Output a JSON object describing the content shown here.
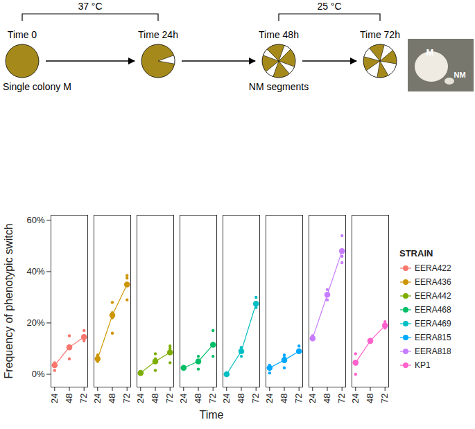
{
  "chart_data": {
    "type": "line",
    "x_label": "Time",
    "y_label": "Frequency of phenotypic switch",
    "legend_title": "STRAIN",
    "legend": "right",
    "marker": "circle",
    "x": [
      24,
      48,
      72
    ],
    "xlim": [
      18,
      78
    ],
    "xticks": [
      24,
      48,
      72
    ],
    "ylim": [
      -5,
      62
    ],
    "yticks": [
      {
        "value": 0,
        "label": "0%"
      },
      {
        "value": 20,
        "label": "20%"
      },
      {
        "value": 40,
        "label": "40%"
      },
      {
        "value": 60,
        "label": "60%"
      }
    ],
    "series": [
      {
        "name": "EERA422",
        "color": "#F8766D",
        "values": [
          3.5,
          10.5,
          14.5
        ],
        "replicates": [
          [
            1.5,
            3,
            4.5
          ],
          [
            6,
            10.5,
            15
          ],
          [
            13,
            15,
            17
          ]
        ]
      },
      {
        "name": "EERA436",
        "color": "#CD9600",
        "values": [
          6,
          23,
          35
        ],
        "replicates": [
          [
            5,
            6,
            7.5
          ],
          [
            16,
            22,
            24,
            28
          ],
          [
            29,
            37.5,
            38.5
          ]
        ]
      },
      {
        "name": "EERA442",
        "color": "#7CAE00",
        "values": [
          0.5,
          5,
          8.5
        ],
        "replicates": [
          [
            0,
            0.5,
            1
          ],
          [
            1.5,
            5,
            6,
            8
          ],
          [
            4.5,
            9,
            10,
            11
          ]
        ]
      },
      {
        "name": "EERA468",
        "color": "#00BE67",
        "values": [
          2.5,
          5,
          11.5
        ],
        "replicates": [
          [
            2,
            3
          ],
          [
            2,
            5,
            7
          ],
          [
            7,
            11.5,
            12,
            17
          ]
        ]
      },
      {
        "name": "EERA469",
        "color": "#00BFC4",
        "values": [
          0,
          9,
          27.5
        ],
        "replicates": [
          [
            0
          ],
          [
            7,
            9,
            10.5
          ],
          [
            26,
            28,
            30
          ]
        ]
      },
      {
        "name": "EERA815",
        "color": "#00A9FF",
        "values": [
          2.5,
          5.5,
          9
        ],
        "replicates": [
          [
            0.5,
            2,
            3.5
          ],
          [
            2.5,
            5,
            6.5,
            7.5
          ],
          [
            8.5,
            9.5,
            11
          ]
        ]
      },
      {
        "name": "EERA818",
        "color": "#C77CFF",
        "values": [
          14,
          31,
          48
        ],
        "replicates": [
          [
            13.5,
            14,
            15
          ],
          [
            29,
            31,
            33
          ],
          [
            43.5,
            46,
            48,
            54
          ]
        ]
      },
      {
        "name": "KP1",
        "color": "#FF61CC",
        "values": [
          4.5,
          13,
          19
        ],
        "replicates": [
          [
            0,
            4,
            8
          ],
          [
            13
          ],
          [
            18,
            19,
            20.5
          ]
        ]
      }
    ]
  },
  "diagram": {
    "temperatures": [
      {
        "label": "37 °C",
        "from": 0,
        "to": 1
      },
      {
        "label": "25 °C",
        "from": 2,
        "to": 3
      }
    ],
    "stages": [
      {
        "label": "Time 0",
        "caption": "Single colony M"
      },
      {
        "label": "Time 24h"
      },
      {
        "label": "Time 48h",
        "caption": "NM segments"
      },
      {
        "label": "Time 72h"
      }
    ],
    "photo_labels": [
      "M",
      "NM"
    ]
  }
}
